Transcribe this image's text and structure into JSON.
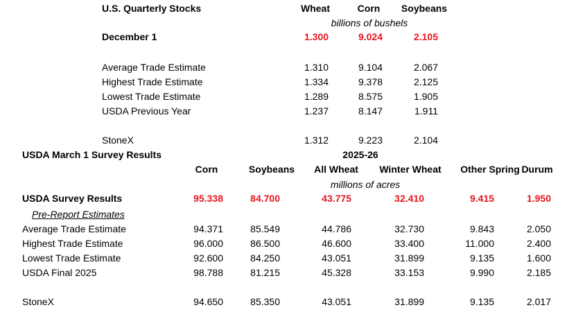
{
  "stocks": {
    "title": "U.S. Quarterly Stocks",
    "columns": [
      "Wheat",
      "Corn",
      "Soybeans"
    ],
    "unit": "billions of bushels",
    "highlight": {
      "label": "December 1",
      "values": [
        "1.300",
        "9.024",
        "2.105"
      ]
    },
    "rows": [
      {
        "label": "Average Trade Estimate",
        "values": [
          "1.310",
          "9.104",
          "2.067"
        ]
      },
      {
        "label": "Highest Trade Estimate",
        "values": [
          "1.334",
          "9.378",
          "2.125"
        ]
      },
      {
        "label": "Lowest Trade Estimate",
        "values": [
          "1.289",
          "8.575",
          "1.905"
        ]
      },
      {
        "label": "USDA Previous Year",
        "values": [
          "1.237",
          "8.147",
          "1.911"
        ]
      },
      {
        "label": "StoneX",
        "values": [
          "1.312",
          "9.223",
          "2.104"
        ]
      }
    ]
  },
  "survey": {
    "title": "USDA March 1 Survey Results",
    "year": "2025-26",
    "columns": [
      "Corn",
      "Soybeans",
      "All Wheat",
      "Winter Wheat",
      "Other Spring",
      "Durum"
    ],
    "unit": "millions of acres",
    "highlight": {
      "label": "USDA Survey Results",
      "values": [
        "95.338",
        "84.700",
        "43.775",
        "32.410",
        "9.415",
        "1.950"
      ]
    },
    "subheading": "Pre-Report Estimates",
    "rows": [
      {
        "label": "Average Trade Estimate",
        "values": [
          "94.371",
          "85.549",
          "44.786",
          "32.730",
          "9.843",
          "2.050"
        ]
      },
      {
        "label": "Highest Trade Estimate",
        "values": [
          "96.000",
          "86.500",
          "46.600",
          "33.400",
          "11.000",
          "2.400"
        ]
      },
      {
        "label": "Lowest Trade Estimate",
        "values": [
          "92.600",
          "84.250",
          "43.051",
          "31.899",
          "9.135",
          "1.600"
        ]
      },
      {
        "label": "USDA Final 2025",
        "values": [
          "98.788",
          "81.215",
          "45.328",
          "33.153",
          "9.990",
          "2.185"
        ]
      },
      {
        "label": "StoneX",
        "values": [
          "94.650",
          "85.350",
          "43.051",
          "31.899",
          "9.135",
          "2.017"
        ]
      }
    ]
  }
}
